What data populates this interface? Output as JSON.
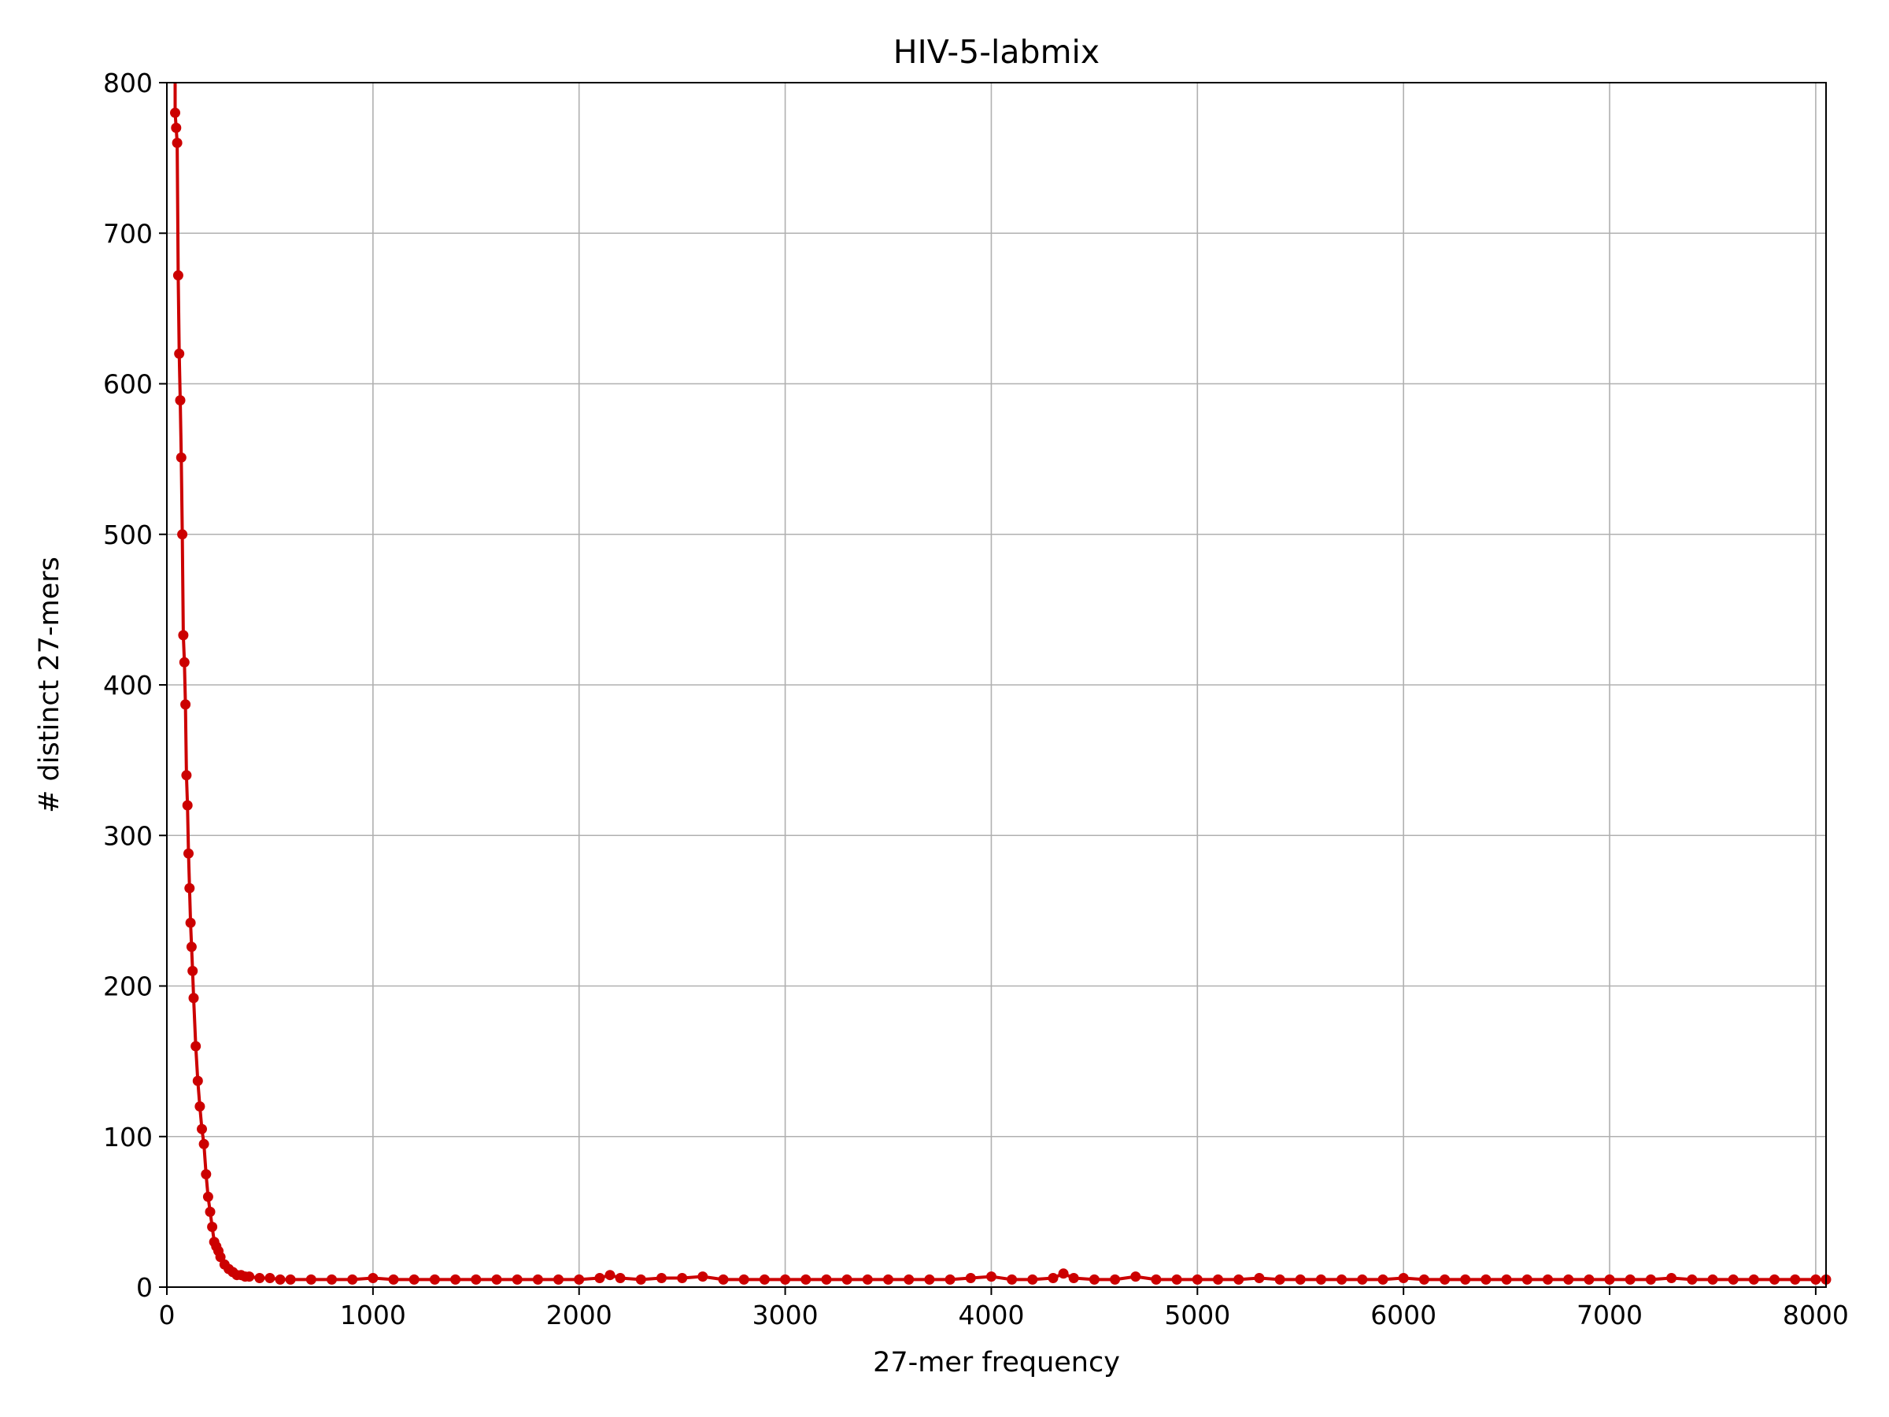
{
  "chart_data": {
    "type": "line",
    "title": "HIV-5-labmix",
    "xlabel": "27-mer frequency",
    "ylabel": "# distinct 27-mers",
    "xlim": [
      0,
      8050
    ],
    "ylim": [
      0,
      800
    ],
    "xticks": [
      0,
      1000,
      2000,
      3000,
      4000,
      5000,
      6000,
      7000,
      8000
    ],
    "yticks": [
      0,
      100,
      200,
      300,
      400,
      500,
      600,
      700,
      800
    ],
    "grid": true,
    "legend": "none",
    "color": "#cc0000",
    "marker": "circle",
    "series": [
      {
        "x": [
          40,
          45,
          50,
          55,
          60,
          65,
          70,
          75,
          80,
          85,
          90,
          95,
          100,
          105,
          110,
          115,
          120,
          125,
          130,
          140,
          150,
          160,
          170,
          180,
          190,
          200,
          210,
          220,
          230,
          240,
          250,
          260,
          280,
          300,
          320,
          340,
          360,
          380,
          400,
          450,
          500,
          550,
          600,
          700,
          800,
          900,
          1000,
          1100,
          1200,
          1300,
          1400,
          1500,
          1600,
          1700,
          1800,
          1900,
          2000,
          2100,
          2150,
          2200,
          2300,
          2400,
          2500,
          2600,
          2700,
          2800,
          2900,
          3000,
          3100,
          3200,
          3300,
          3400,
          3500,
          3600,
          3700,
          3800,
          3900,
          4000,
          4100,
          4200,
          4300,
          4350,
          4400,
          4500,
          4600,
          4700,
          4800,
          4900,
          5000,
          5100,
          5200,
          5300,
          5400,
          5500,
          5600,
          5700,
          5800,
          5900,
          6000,
          6100,
          6200,
          6300,
          6400,
          6500,
          6600,
          6700,
          6800,
          6900,
          7000,
          7100,
          7200,
          7300,
          7400,
          7500,
          7600,
          7700,
          7800,
          7900,
          8000,
          8050
        ],
        "y": [
          780,
          770,
          760,
          672,
          620,
          589,
          551,
          500,
          433,
          415,
          387,
          340,
          320,
          288,
          265,
          242,
          226,
          210,
          192,
          160,
          137,
          120,
          105,
          95,
          75,
          60,
          50,
          40,
          30,
          27,
          24,
          20,
          15,
          12,
          10,
          8,
          8,
          7,
          7,
          6,
          6,
          5,
          5,
          5,
          5,
          5,
          6,
          5,
          5,
          5,
          5,
          5,
          5,
          5,
          5,
          5,
          5,
          6,
          8,
          6,
          5,
          6,
          6,
          7,
          5,
          5,
          5,
          5,
          5,
          5,
          5,
          5,
          5,
          5,
          5,
          5,
          6,
          7,
          5,
          5,
          6,
          9,
          6,
          5,
          5,
          7,
          5,
          5,
          5,
          5,
          5,
          6,
          5,
          5,
          5,
          5,
          5,
          5,
          6,
          5,
          5,
          5,
          5,
          5,
          5,
          5,
          5,
          5,
          5,
          5,
          5,
          6,
          5,
          5,
          5,
          5,
          5,
          5,
          5,
          5
        ]
      }
    ]
  }
}
